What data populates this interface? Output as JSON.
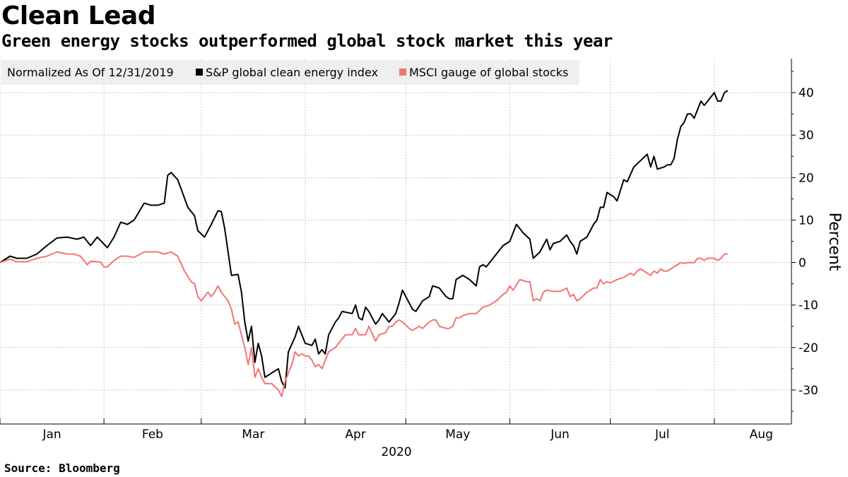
{
  "title": "Clean Lead",
  "subtitle": "Green energy stocks outperformed global stock market this year",
  "source": "Source: Bloomberg",
  "chart_data": {
    "type": "line",
    "title": "Clean Lead",
    "subtitle": "Green energy stocks outperformed global stock market this year",
    "xlabel": "2020",
    "ylabel": "Percent",
    "ylim": [
      -38,
      48
    ],
    "yticks": [
      -30,
      -20,
      -10,
      0,
      10,
      20,
      30,
      40
    ],
    "ytick_labels": [
      "-30",
      "-20",
      "-10",
      "0",
      "10",
      "20",
      "30",
      "40"
    ],
    "xlim": [
      0,
      236
    ],
    "xticks": [
      0,
      31,
      60,
      91,
      121,
      152,
      182,
      213
    ],
    "xtick_labels": [
      {
        "label": "Jan",
        "pos": 15.5
      },
      {
        "label": "Feb",
        "pos": 45.5
      },
      {
        "label": "Mar",
        "pos": 75.5
      },
      {
        "label": "Apr",
        "pos": 106
      },
      {
        "label": "May",
        "pos": 136.5
      },
      {
        "label": "Jun",
        "pos": 167
      },
      {
        "label": "Jul",
        "pos": 197.5
      },
      {
        "label": "Aug",
        "pos": 227
      }
    ],
    "grid": true,
    "legend": {
      "note": "Normalized As Of 12/31/2019",
      "placement": "top-left"
    },
    "series": [
      {
        "name": "S&P global clean energy index",
        "color": "#000000",
        "points": [
          [
            0,
            0
          ],
          [
            3,
            1.5
          ],
          [
            5,
            1
          ],
          [
            8,
            1
          ],
          [
            11,
            2
          ],
          [
            14,
            4
          ],
          [
            17,
            5.8
          ],
          [
            20,
            6
          ],
          [
            23,
            5.5
          ],
          [
            25,
            6
          ],
          [
            27,
            4
          ],
          [
            29,
            6
          ],
          [
            32,
            3.5
          ],
          [
            34,
            6
          ],
          [
            36,
            9.5
          ],
          [
            38,
            9
          ],
          [
            40,
            10
          ],
          [
            43,
            14
          ],
          [
            45,
            13.5
          ],
          [
            47,
            13.5
          ],
          [
            49,
            14
          ],
          [
            50,
            20.5
          ],
          [
            51,
            21.2
          ],
          [
            53,
            19.5
          ],
          [
            56,
            13
          ],
          [
            58,
            11
          ],
          [
            59,
            7.5
          ],
          [
            61,
            6
          ],
          [
            63,
            9
          ],
          [
            65,
            12.2
          ],
          [
            66,
            12
          ],
          [
            67,
            8
          ],
          [
            69,
            -3
          ],
          [
            71,
            -2.8
          ],
          [
            72,
            -7
          ],
          [
            73,
            -14
          ],
          [
            74,
            -18.5
          ],
          [
            75,
            -15
          ],
          [
            76,
            -23.5
          ],
          [
            77,
            -19
          ],
          [
            78,
            -22
          ],
          [
            79,
            -27
          ],
          [
            81,
            -26
          ],
          [
            83,
            -25
          ],
          [
            84,
            -28
          ],
          [
            85,
            -29.5
          ],
          [
            86,
            -21
          ],
          [
            88,
            -17.5
          ],
          [
            89,
            -15
          ],
          [
            91,
            -19
          ],
          [
            93,
            -19.5
          ],
          [
            94,
            -18
          ],
          [
            95,
            -21.5
          ],
          [
            96,
            -20.5
          ],
          [
            97,
            -21.5
          ],
          [
            98,
            -17
          ],
          [
            100,
            -14
          ],
          [
            101,
            -13
          ],
          [
            102,
            -11.5
          ],
          [
            105,
            -12
          ],
          [
            106,
            -10
          ],
          [
            107,
            -13
          ],
          [
            108,
            -13.5
          ],
          [
            109,
            -10.5
          ],
          [
            110,
            -11.5
          ],
          [
            112,
            -14.5
          ],
          [
            113,
            -13.5
          ],
          [
            114,
            -12
          ],
          [
            116,
            -14
          ],
          [
            118,
            -12
          ],
          [
            119,
            -9.5
          ],
          [
            120,
            -6.5
          ],
          [
            122,
            -9.5
          ],
          [
            123,
            -11
          ],
          [
            124,
            -11.5
          ],
          [
            126,
            -9
          ],
          [
            128,
            -8
          ],
          [
            129,
            -5.5
          ],
          [
            131,
            -6
          ],
          [
            133,
            -8
          ],
          [
            134,
            -8.5
          ],
          [
            135,
            -8.5
          ],
          [
            136,
            -4
          ],
          [
            138,
            -3
          ],
          [
            140,
            -4
          ],
          [
            142,
            -5.5
          ],
          [
            143,
            -1
          ],
          [
            144,
            -0.5
          ],
          [
            145,
            -1
          ],
          [
            148,
            2
          ],
          [
            150,
            4
          ],
          [
            152,
            5
          ],
          [
            154,
            9
          ],
          [
            156,
            7
          ],
          [
            158,
            5.5
          ],
          [
            159,
            1
          ],
          [
            161,
            2.5
          ],
          [
            162,
            4
          ],
          [
            163,
            5.5
          ],
          [
            164,
            3
          ],
          [
            165,
            4.5
          ],
          [
            167,
            5
          ],
          [
            169,
            6.5
          ],
          [
            170,
            5
          ],
          [
            171,
            4
          ],
          [
            172,
            2
          ],
          [
            173,
            5
          ],
          [
            175,
            6
          ],
          [
            177,
            9
          ],
          [
            178,
            10
          ],
          [
            179,
            13
          ],
          [
            180,
            13
          ],
          [
            181,
            16.5
          ],
          [
            183,
            15.5
          ],
          [
            184,
            14.5
          ],
          [
            186,
            19.5
          ],
          [
            187,
            19
          ],
          [
            189,
            22.5
          ],
          [
            191,
            24
          ],
          [
            193,
            25.5
          ],
          [
            194,
            22.5
          ],
          [
            195,
            25
          ],
          [
            196,
            22
          ],
          [
            198,
            22.5
          ],
          [
            199,
            23
          ],
          [
            200,
            23
          ],
          [
            201,
            24.5
          ],
          [
            202,
            29
          ],
          [
            203,
            32
          ],
          [
            204,
            33
          ],
          [
            205,
            35
          ],
          [
            206,
            35
          ],
          [
            207,
            34
          ],
          [
            208,
            36
          ],
          [
            209,
            38
          ],
          [
            210,
            37
          ],
          [
            211,
            38
          ],
          [
            212,
            39
          ],
          [
            213,
            40
          ],
          [
            214,
            38
          ],
          [
            215,
            38
          ],
          [
            216,
            40
          ],
          [
            217,
            40.5
          ]
        ]
      },
      {
        "name": "MSCI gauge of global stocks",
        "color": "#f07573",
        "points": [
          [
            0,
            0
          ],
          [
            3,
            0.8
          ],
          [
            5,
            0.2
          ],
          [
            8,
            0.2
          ],
          [
            11,
            1
          ],
          [
            14,
            1.5
          ],
          [
            17,
            2.5
          ],
          [
            20,
            2
          ],
          [
            22,
            2
          ],
          [
            24,
            1.5
          ],
          [
            25,
            0.5
          ],
          [
            26,
            -0.5
          ],
          [
            27,
            0.3
          ],
          [
            29,
            0.2
          ],
          [
            30,
            0.1
          ],
          [
            31,
            -1
          ],
          [
            32,
            -1
          ],
          [
            34,
            0.5
          ],
          [
            36,
            1.5
          ],
          [
            38,
            1.5
          ],
          [
            40,
            1.2
          ],
          [
            43,
            2.5
          ],
          [
            45,
            2.5
          ],
          [
            47,
            2.5
          ],
          [
            49,
            2
          ],
          [
            51,
            2.5
          ],
          [
            53,
            1.5
          ],
          [
            55,
            -2
          ],
          [
            57,
            -4.5
          ],
          [
            58,
            -5
          ],
          [
            59,
            -8
          ],
          [
            60,
            -9
          ],
          [
            61,
            -8
          ],
          [
            62,
            -7
          ],
          [
            63,
            -8
          ],
          [
            64,
            -7
          ],
          [
            65,
            -5.5
          ],
          [
            66,
            -7
          ],
          [
            68,
            -9
          ],
          [
            69,
            -11
          ],
          [
            70,
            -14.5
          ],
          [
            71,
            -14
          ],
          [
            72,
            -17
          ],
          [
            73,
            -20
          ],
          [
            74,
            -24
          ],
          [
            75,
            -20
          ],
          [
            76,
            -27
          ],
          [
            77,
            -25
          ],
          [
            78,
            -27
          ],
          [
            79,
            -28.5
          ],
          [
            81,
            -28.5
          ],
          [
            83,
            -30
          ],
          [
            84,
            -31.5
          ],
          [
            85,
            -28
          ],
          [
            86,
            -26
          ],
          [
            87,
            -24
          ],
          [
            88,
            -21
          ],
          [
            89,
            -22
          ],
          [
            90,
            -21.5
          ],
          [
            91,
            -22
          ],
          [
            92,
            -22
          ],
          [
            93,
            -23
          ],
          [
            94,
            -24.5
          ],
          [
            95,
            -24
          ],
          [
            96,
            -25
          ],
          [
            97,
            -23
          ],
          [
            98,
            -21
          ],
          [
            100,
            -20
          ],
          [
            101,
            -19
          ],
          [
            102,
            -18
          ],
          [
            103,
            -17
          ],
          [
            105,
            -17
          ],
          [
            106,
            -15.5
          ],
          [
            107,
            -17
          ],
          [
            109,
            -17
          ],
          [
            110,
            -15
          ],
          [
            112,
            -18.5
          ],
          [
            113,
            -17
          ],
          [
            115,
            -16.5
          ],
          [
            116,
            -15
          ],
          [
            117,
            -15
          ],
          [
            118,
            -14
          ],
          [
            119,
            -13.5
          ],
          [
            120,
            -14
          ],
          [
            122,
            -15.5
          ],
          [
            123,
            -16
          ],
          [
            125,
            -15
          ],
          [
            126,
            -15.5
          ],
          [
            128,
            -14
          ],
          [
            129,
            -13.5
          ],
          [
            130,
            -13.5
          ],
          [
            131,
            -15
          ],
          [
            133,
            -15.5
          ],
          [
            134,
            -15.5
          ],
          [
            135,
            -15
          ],
          [
            136,
            -13
          ],
          [
            137,
            -13
          ],
          [
            138,
            -12.5
          ],
          [
            140,
            -12
          ],
          [
            142,
            -12
          ],
          [
            144,
            -10.5
          ],
          [
            146,
            -10
          ],
          [
            148,
            -9
          ],
          [
            150,
            -7.5
          ],
          [
            151,
            -7
          ],
          [
            152,
            -5.5
          ],
          [
            153,
            -6.5
          ],
          [
            155,
            -4
          ],
          [
            157,
            -4.5
          ],
          [
            158,
            -4.5
          ],
          [
            159,
            -9
          ],
          [
            160,
            -8.5
          ],
          [
            161,
            -9
          ],
          [
            162,
            -7
          ],
          [
            163,
            -6.5
          ],
          [
            165,
            -6.8
          ],
          [
            167,
            -6.8
          ],
          [
            169,
            -6
          ],
          [
            170,
            -8
          ],
          [
            171,
            -7.5
          ],
          [
            172,
            -9
          ],
          [
            173,
            -8.5
          ],
          [
            175,
            -7
          ],
          [
            177,
            -6
          ],
          [
            178,
            -6
          ],
          [
            179,
            -4
          ],
          [
            180,
            -5
          ],
          [
            181,
            -4.5
          ],
          [
            182,
            -4.8
          ],
          [
            184,
            -4
          ],
          [
            186,
            -3.5
          ],
          [
            187,
            -3
          ],
          [
            188,
            -2.5
          ],
          [
            189,
            -3
          ],
          [
            190,
            -2
          ],
          [
            191,
            -1.5
          ],
          [
            192,
            -2
          ],
          [
            193,
            -2.5
          ],
          [
            194,
            -3
          ],
          [
            195,
            -2
          ],
          [
            196,
            -2.5
          ],
          [
            197,
            -1.5
          ],
          [
            198,
            -2
          ],
          [
            199,
            -2
          ],
          [
            200,
            -1.5
          ],
          [
            201,
            -1
          ],
          [
            202,
            -0.5
          ],
          [
            203,
            0
          ],
          [
            204,
            -0.2
          ],
          [
            205,
            0
          ],
          [
            207,
            0
          ],
          [
            208,
            1
          ],
          [
            209,
            1
          ],
          [
            210,
            0.5
          ],
          [
            211,
            1
          ],
          [
            212,
            1
          ],
          [
            213,
            1
          ],
          [
            214,
            0.5
          ],
          [
            215,
            1
          ],
          [
            216,
            2
          ],
          [
            217,
            2
          ]
        ]
      }
    ]
  }
}
